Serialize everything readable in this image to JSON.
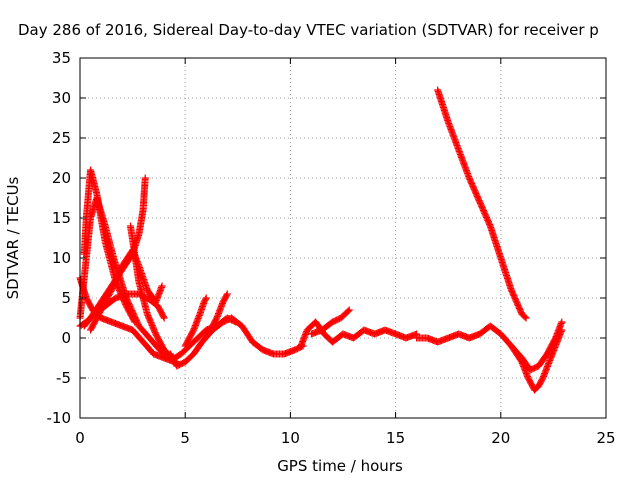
{
  "chart_data": {
    "type": "scatter",
    "title": "Day 286 of 2016, Sidereal Day-to-day VTEC variation (SDTVAR) for receiver p",
    "xlabel": "GPS time / hours",
    "ylabel": "SDTVAR / TECUs",
    "xlim": [
      0,
      25
    ],
    "ylim": [
      -10,
      35
    ],
    "xticks": [
      0,
      5,
      10,
      15,
      20,
      25
    ],
    "yticks": [
      -10,
      -5,
      0,
      5,
      10,
      15,
      20,
      25,
      30,
      35
    ],
    "grid": true,
    "legend": "none",
    "marker": "plus",
    "color": "#ff0000",
    "series": [
      {
        "x": [
          0.0,
          0.1,
          0.3,
          0.5,
          0.8,
          1.2,
          1.6,
          2.2,
          2.8,
          3.3,
          3.8,
          4.2,
          4.6
        ],
        "y": [
          2.5,
          5.0,
          10.0,
          15.0,
          17.5,
          14.0,
          10.0,
          5.0,
          1.5,
          0.0,
          -1.5,
          -2.5,
          -3.0
        ]
      },
      {
        "x": [
          0.0,
          0.3,
          0.6,
          1.0,
          1.5,
          2.0,
          2.5,
          3.0,
          3.5,
          4.0,
          4.5
        ],
        "y": [
          7.5,
          5.0,
          3.5,
          2.5,
          2.0,
          1.5,
          1.0,
          -0.5,
          -2.0,
          -2.5,
          -3.0
        ]
      },
      {
        "x": [
          0.2,
          0.3,
          0.5,
          0.8,
          1.2,
          1.7,
          2.2,
          2.6
        ],
        "y": [
          10.5,
          15.0,
          21.0,
          18.0,
          12.0,
          7.0,
          4.0,
          2.0
        ]
      },
      {
        "x": [
          0.0,
          0.3,
          0.7,
          1.2,
          1.7,
          2.3,
          2.8,
          3.2,
          3.7,
          4.0
        ],
        "y": [
          1.5,
          2.0,
          3.0,
          4.0,
          5.0,
          5.5,
          5.5,
          5.0,
          4.0,
          2.5
        ]
      },
      {
        "x": [
          0.2,
          0.5,
          1.0,
          1.5,
          2.0,
          2.5,
          2.8,
          3.0,
          3.1
        ],
        "y": [
          1.5,
          2.5,
          4.5,
          6.5,
          8.5,
          10.5,
          13.0,
          16.0,
          20.0
        ]
      },
      {
        "x": [
          0.5,
          0.9,
          1.5,
          2.0,
          2.5,
          2.8,
          3.2,
          3.6,
          3.9
        ],
        "y": [
          1.0,
          3.0,
          6.0,
          9.0,
          11.0,
          9.0,
          6.0,
          4.5,
          6.5
        ]
      },
      {
        "x": [
          2.4,
          2.6,
          2.8,
          3.2,
          3.6,
          4.0,
          4.4
        ],
        "y": [
          14.0,
          10.5,
          7.0,
          3.0,
          0.5,
          -1.5,
          -2.5
        ]
      },
      {
        "x": [
          4.3,
          4.6,
          5.0,
          5.4,
          5.8,
          6.3,
          6.8,
          7.2,
          7.7,
          8.2,
          8.7,
          9.2,
          9.7,
          10.2,
          10.6
        ],
        "y": [
          -2.0,
          -3.5,
          -3.0,
          -2.0,
          -0.5,
          1.0,
          2.0,
          2.5,
          1.5,
          -0.5,
          -1.5,
          -2.0,
          -2.0,
          -1.5,
          -1.0
        ]
      },
      {
        "x": [
          4.5,
          4.8,
          5.2,
          5.6,
          6.0,
          6.5,
          7.0,
          7.4
        ],
        "y": [
          -2.5,
          -2.0,
          -1.0,
          0.0,
          1.0,
          1.5,
          2.5,
          2.0
        ]
      },
      {
        "x": [
          5.0,
          5.4,
          5.7,
          5.9,
          6.0
        ],
        "y": [
          -1.0,
          1.0,
          3.0,
          4.5,
          5.0
        ]
      },
      {
        "x": [
          6.2,
          6.5,
          6.8,
          7.0
        ],
        "y": [
          1.0,
          2.5,
          4.5,
          5.5
        ]
      },
      {
        "x": [
          10.5,
          10.8,
          11.2,
          11.6,
          12.0,
          12.5,
          13.0,
          13.5,
          14.0,
          14.5,
          15.0,
          15.5,
          16.0
        ],
        "y": [
          -1.0,
          1.0,
          2.0,
          0.5,
          -0.5,
          0.5,
          0.0,
          1.0,
          0.5,
          1.0,
          0.5,
          0.0,
          0.5
        ]
      },
      {
        "x": [
          11.0,
          11.5,
          12.0,
          12.4,
          12.8
        ],
        "y": [
          0.5,
          1.0,
          2.0,
          2.5,
          3.5
        ]
      },
      {
        "x": [
          16.0,
          16.5,
          17.0,
          17.5,
          18.0,
          18.5,
          19.0,
          19.5,
          20.0,
          20.5,
          21.0
        ],
        "y": [
          0.0,
          0.0,
          -0.5,
          0.0,
          0.5,
          0.0,
          0.5,
          1.5,
          0.5,
          -1.0,
          -2.5
        ]
      },
      {
        "x": [
          20.5,
          21.0,
          21.3,
          21.6,
          21.8,
          22.0,
          22.3,
          22.6,
          22.9
        ],
        "y": [
          -1.0,
          -3.0,
          -5.0,
          -6.5,
          -6.0,
          -5.0,
          -3.0,
          -1.0,
          1.0
        ]
      },
      {
        "x": [
          21.0,
          21.4,
          21.8,
          22.2,
          22.6,
          22.9
        ],
        "y": [
          -2.5,
          -4.0,
          -3.5,
          -2.0,
          0.0,
          2.0
        ]
      },
      {
        "x": [
          17.0,
          17.5,
          18.0,
          18.5,
          19.0,
          19.5,
          20.0,
          20.5,
          21.0,
          21.2
        ],
        "y": [
          31.0,
          27.0,
          23.5,
          20.0,
          17.0,
          14.0,
          10.0,
          6.0,
          3.0,
          2.5
        ]
      }
    ]
  }
}
